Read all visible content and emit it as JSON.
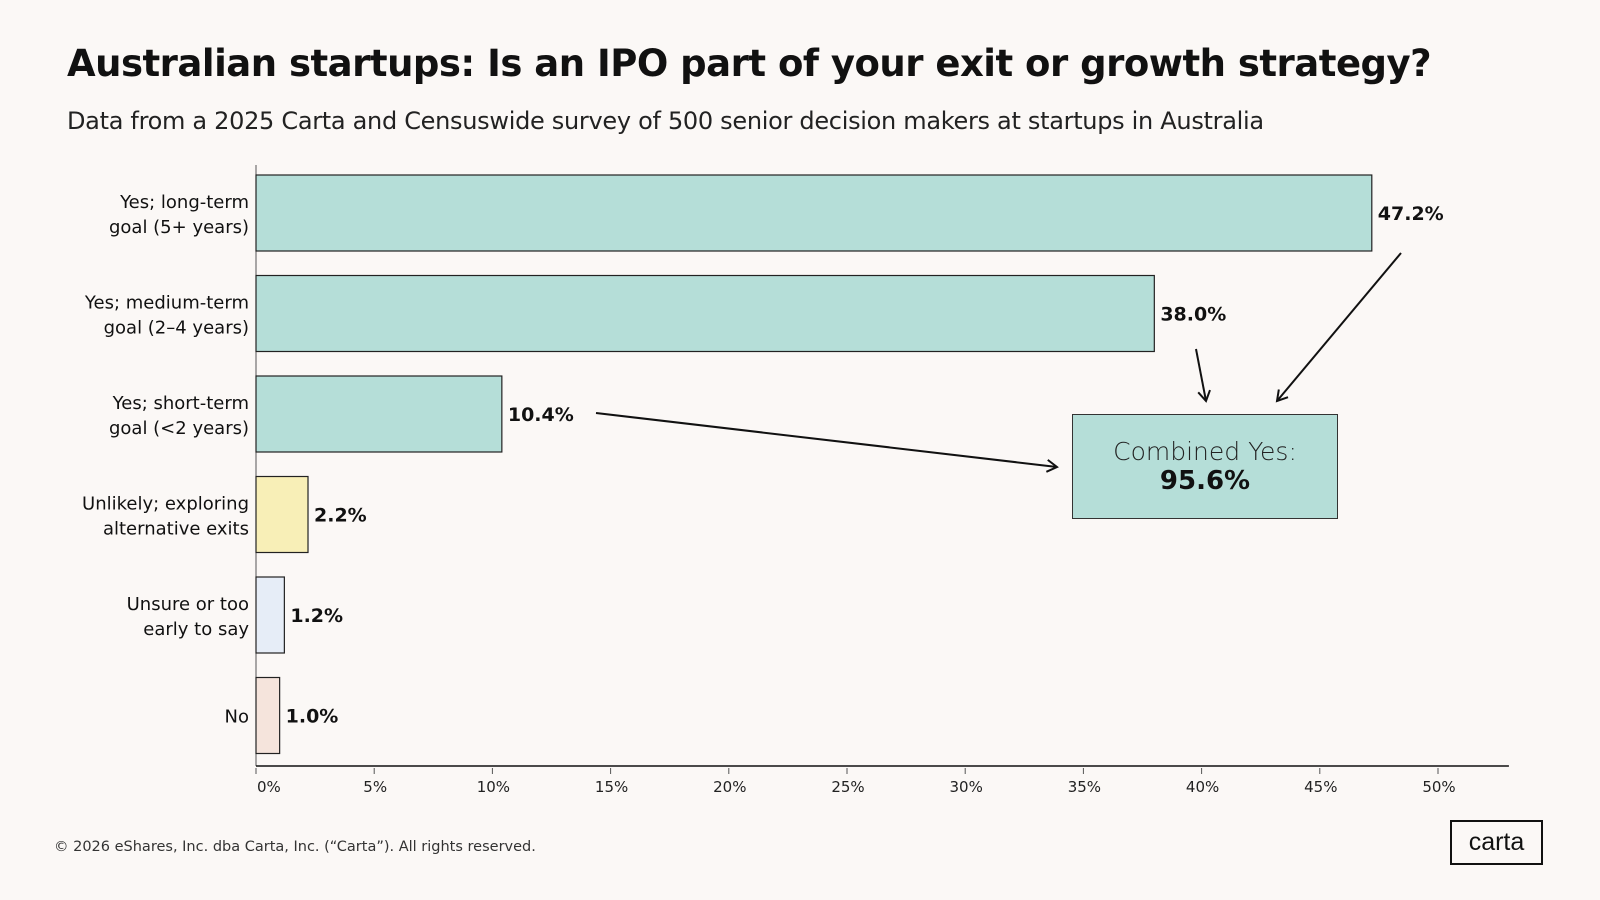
{
  "title": "Australian startups: Is an IPO part of your exit or growth strategy?",
  "subtitle": "Data from a 2025 Carta and Censuswide survey of 500 senior decision makers at startups in Australia",
  "footer": "© 2026 eShares, Inc. dba Carta, Inc. (“Carta”). All rights reserved.",
  "logo": "carta",
  "callout": {
    "label": "Combined Yes:",
    "value": "95.6%"
  },
  "chart_data": {
    "type": "bar",
    "orientation": "horizontal",
    "categories": [
      [
        "Yes; long-term",
        "goal (5+ years)"
      ],
      [
        "Yes; medium-term",
        "goal (2–4 years)"
      ],
      [
        "Yes; short-term",
        "goal (<2 years)"
      ],
      [
        "Unlikely; exploring",
        "alternative exits"
      ],
      [
        "Unsure or too",
        "early to say"
      ],
      [
        "No"
      ]
    ],
    "values": [
      47.2,
      38.0,
      10.4,
      2.2,
      1.2,
      1.0
    ],
    "labels": [
      "47.2%",
      "38.0%",
      "10.4%",
      "2.2%",
      "1.2%",
      "1.0%"
    ],
    "colors": [
      "#b5ded8",
      "#b5ded8",
      "#b5ded8",
      "#f8efb7",
      "#e6edf7",
      "#f5e4dc"
    ],
    "xlim": [
      0,
      53
    ],
    "xticks": [
      0,
      5,
      10,
      15,
      20,
      25,
      30,
      35,
      40,
      45,
      50
    ],
    "xtick_labels": [
      "0%",
      "5%",
      "10%",
      "15%",
      "20%",
      "25%",
      "30%",
      "35%",
      "40%",
      "45%",
      "50%"
    ],
    "grid": false,
    "xlabel": "",
    "ylabel": ""
  }
}
